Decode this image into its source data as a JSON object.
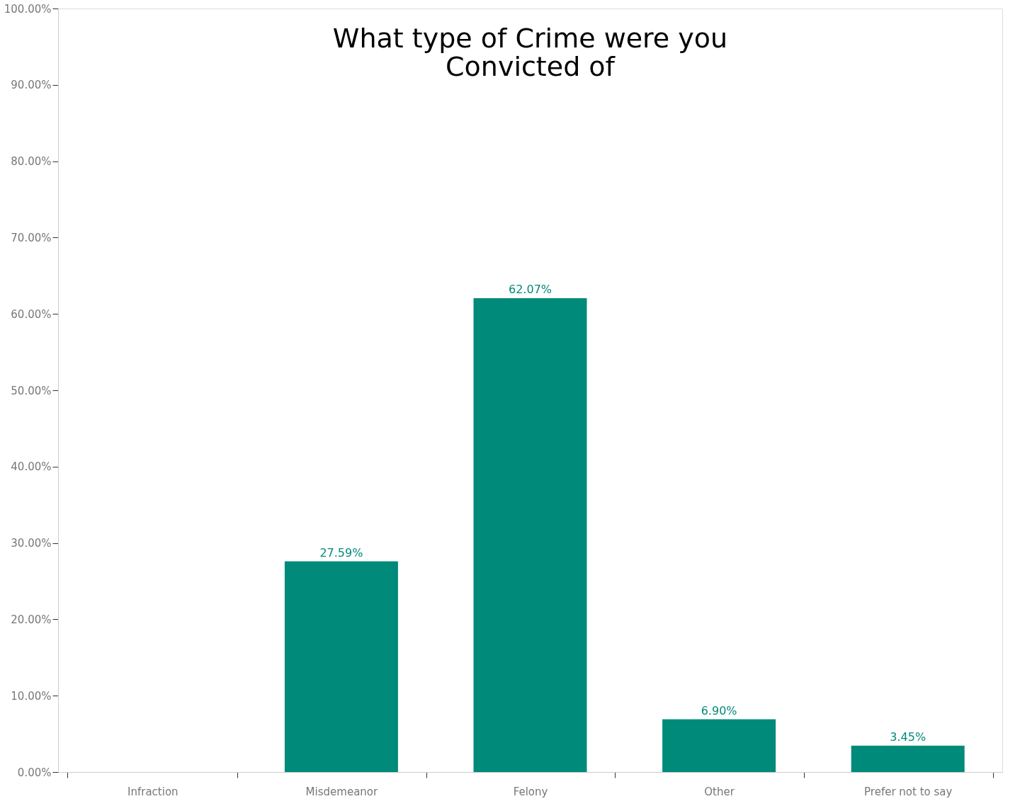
{
  "chart_data": {
    "type": "bar",
    "title": "What type of Crime were you Convicted of",
    "categories": [
      "Infraction",
      "Misdemeanor",
      "Felony",
      "Other",
      "Prefer not to say"
    ],
    "values": [
      0,
      27.59,
      62.07,
      6.9,
      3.45
    ],
    "value_labels": [
      null,
      "27.59%",
      "62.07%",
      "6.90%",
      "3.45%"
    ],
    "color": "#008a7a",
    "ylim": [
      0,
      100
    ],
    "yticks": [
      {
        "value": 0,
        "label": "0.00%"
      },
      {
        "value": 10,
        "label": "10.00%"
      },
      {
        "value": 20,
        "label": "20.00%"
      },
      {
        "value": 30,
        "label": "30.00%"
      },
      {
        "value": 40,
        "label": "40.00%"
      },
      {
        "value": 50,
        "label": "50.00%"
      },
      {
        "value": 60,
        "label": "60.00%"
      },
      {
        "value": 70,
        "label": "70.00%"
      },
      {
        "value": 80,
        "label": "80.00%"
      },
      {
        "value": 90,
        "label": "90.00%"
      },
      {
        "value": 100,
        "label": "100.00%"
      }
    ],
    "grid": false
  }
}
